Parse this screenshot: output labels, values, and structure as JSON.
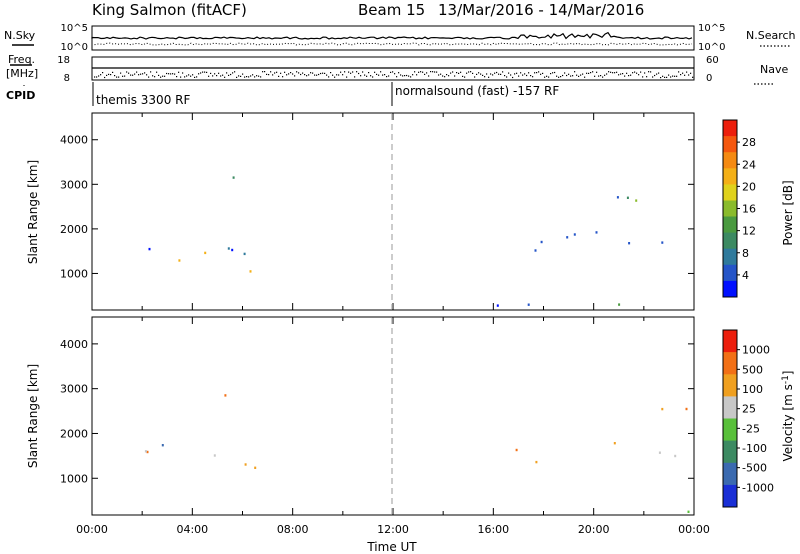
{
  "header": {
    "station": "King Salmon (fitACF)",
    "beam": "Beam 15",
    "date_range": "13/Mar/2016 - 14/Mar/2016"
  },
  "top_panels": {
    "nsky_label": "N.Sky",
    "nsearch_label": "N.Search",
    "freq_label_line1": "Freq.",
    "freq_label_line2": "[MHz]",
    "nave_label": "Nave",
    "cpid_label": "CPID",
    "count_ticks_left": [
      "10^5",
      "10^0"
    ],
    "count_ticks_right": [
      "10^5",
      "10^0"
    ],
    "freq_ticks": [
      "18",
      "8"
    ],
    "nave_ticks": [
      "60",
      "0"
    ]
  },
  "cpid_segments": [
    {
      "label": "themis 3300 RF",
      "start_hour": 0
    },
    {
      "label": "normalsound (fast) -157 RF",
      "start_hour": 12
    }
  ],
  "chart_data": [
    {
      "type": "heatmap",
      "name": "power",
      "xlabel": "Time UT",
      "ylabel": "Slant Range [km]",
      "xlim": [
        0,
        24
      ],
      "ylim": [
        180,
        4600
      ],
      "yticks": [
        1000,
        2000,
        3000,
        4000
      ],
      "colorbar": {
        "label": "Power [dB]",
        "ticks": [
          "28",
          "24",
          "20",
          "16",
          "12",
          "8",
          "4"
        ],
        "range": [
          0,
          30
        ],
        "colors": [
          "#0010ff",
          "#2555c8",
          "#2f7a9c",
          "#3c8a62",
          "#4a9a3f",
          "#8abb2c",
          "#e0d21c",
          "#f4b017",
          "#f58a12",
          "#f4570e",
          "#ec1e0c"
        ]
      },
      "clusters": [
        {
          "t": [
            0.5,
            8.0
          ],
          "r": [
            1200,
            1800
          ],
          "level": "low"
        },
        {
          "t": [
            3.0,
            7.0
          ],
          "r": [
            900,
            1700
          ],
          "level": "high"
        },
        {
          "t": [
            5.0,
            6.2
          ],
          "r": [
            2300,
            3500
          ],
          "level": "mid"
        },
        {
          "t": [
            15.5,
            24.0
          ],
          "r": [
            1300,
            2200
          ],
          "level": "low"
        },
        {
          "t": [
            18.0,
            24.0
          ],
          "r": [
            2400,
            3000
          ],
          "level": "mid"
        },
        {
          "t": [
            8.5,
            24.0
          ],
          "r": [
            200,
            420
          ],
          "level": "low"
        }
      ]
    },
    {
      "type": "heatmap",
      "name": "velocity",
      "xlabel": "Time UT",
      "ylabel": "Slant Range [km]",
      "xlim": [
        0,
        24
      ],
      "ylim": [
        180,
        4600
      ],
      "yticks": [
        1000,
        2000,
        3000,
        4000
      ],
      "xticks": [
        "00:00",
        "04:00",
        "08:00",
        "12:00",
        "16:00",
        "20:00",
        "00:00"
      ],
      "colorbar": {
        "label": "Velocity [m s^-1]",
        "ticks": [
          "1000",
          "500",
          "100",
          "25",
          "-25",
          "-100",
          "-500",
          "-1000"
        ],
        "colors": [
          "#1a2fd6",
          "#3b6ab0",
          "#3c8a62",
          "#59c03a",
          "#c8c8c8",
          "#f0a020",
          "#f27016",
          "#ec1e0c"
        ]
      },
      "clusters": [
        {
          "t": [
            0.3,
            8.0
          ],
          "r": [
            1300,
            1900
          ],
          "level": "ground"
        },
        {
          "t": [
            4.5,
            7.5
          ],
          "r": [
            800,
            1600
          ],
          "level": "away"
        },
        {
          "t": [
            5.0,
            6.3
          ],
          "r": [
            2300,
            3500
          ],
          "level": "mixed"
        },
        {
          "t": [
            16.0,
            18.5
          ],
          "r": [
            1500,
            2000
          ],
          "level": "away"
        },
        {
          "t": [
            17.0,
            24.0
          ],
          "r": [
            1300,
            2000
          ],
          "level": "ground"
        },
        {
          "t": [
            19.5,
            24.0
          ],
          "r": [
            2400,
            2800
          ],
          "level": "away"
        },
        {
          "t": [
            8.5,
            24.0
          ],
          "r": [
            200,
            420
          ],
          "level": "slow"
        }
      ]
    }
  ]
}
